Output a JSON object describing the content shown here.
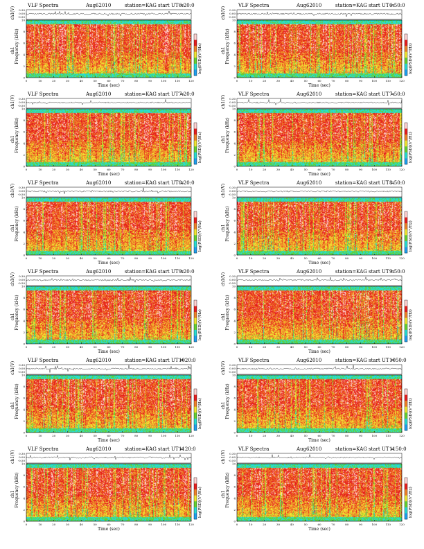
{
  "figure": {
    "label": "VLF Spectra",
    "date": "Aug62010",
    "station": "station=KAG",
    "start_label": "start UT =",
    "wave_ylabel": "ch1(V)",
    "wave_ticks": [
      "0.30",
      "0.00",
      "-0.50"
    ],
    "spec_ylabel": "Frequency (kHz)",
    "spec_ylabel_left": "ch1",
    "colorbar_label": "log(PSD)(V²/Hz)",
    "xlabel": "Time (sec)",
    "colors": {
      "background": "#ffffff",
      "low": "#1ea0f0",
      "cyan": "#28dcd2",
      "green": "#64d232",
      "yellow": "#f0e632",
      "orange": "#f08228",
      "red": "#e61e1e",
      "hot": "#ffd2d2"
    }
  },
  "chart_data": [
    {
      "type": "heatmap",
      "start_ut": "6:20:0",
      "x_ticks": [
        "0",
        "10",
        "20",
        "30",
        "40",
        "50",
        "60",
        "70",
        "80",
        "90",
        "100",
        "110",
        "120"
      ],
      "x_range": [
        0,
        120
      ],
      "y_ticks": [
        "0",
        "2",
        "4",
        "6",
        "8",
        "10"
      ],
      "y_range": [
        0,
        10
      ],
      "y_unit": "kHz"
    },
    {
      "type": "heatmap",
      "start_ut": "6:50:0",
      "x_ticks": [
        "0",
        "10",
        "20",
        "30",
        "40",
        "50",
        "60",
        "70",
        "80",
        "90",
        "100",
        "110",
        "120"
      ],
      "x_range": [
        0,
        120
      ],
      "y_ticks": [
        "0",
        "2",
        "4",
        "6",
        "8",
        "10"
      ],
      "y_range": [
        0,
        10
      ],
      "y_unit": "kHz"
    },
    {
      "type": "heatmap",
      "start_ut": "7:20:0",
      "x_ticks": [
        "0",
        "10",
        "20",
        "30",
        "40",
        "50",
        "60",
        "70",
        "80",
        "90",
        "100",
        "110",
        "120"
      ],
      "x_range": [
        0,
        120
      ],
      "y_ticks": [
        "0",
        "2",
        "4",
        "6",
        "8",
        "10"
      ],
      "y_range": [
        0,
        10
      ],
      "y_unit": "kHz"
    },
    {
      "type": "heatmap",
      "start_ut": "7:50:0",
      "x_ticks": [
        "0",
        "10",
        "20",
        "30",
        "40",
        "50",
        "60",
        "70",
        "80",
        "90",
        "100",
        "110",
        "120"
      ],
      "x_range": [
        0,
        120
      ],
      "y_ticks": [
        "0",
        "2",
        "4",
        "6",
        "8",
        "10"
      ],
      "y_range": [
        0,
        10
      ],
      "y_unit": "kHz"
    },
    {
      "type": "heatmap",
      "start_ut": "8:20:0",
      "x_ticks": [
        "0",
        "10",
        "20",
        "30",
        "40",
        "50",
        "60",
        "70",
        "80",
        "90",
        "100",
        "110",
        "120"
      ],
      "x_range": [
        0,
        120
      ],
      "y_ticks": [
        "0",
        "2",
        "4",
        "6",
        "8",
        "10"
      ],
      "y_range": [
        0,
        10
      ],
      "y_unit": "kHz"
    },
    {
      "type": "heatmap",
      "start_ut": "8:50:0",
      "x_ticks": [
        "0",
        "10",
        "20",
        "30",
        "40",
        "50",
        "60",
        "70",
        "80",
        "90",
        "100",
        "110",
        "120"
      ],
      "x_range": [
        0,
        120
      ],
      "y_ticks": [
        "0",
        "2",
        "4",
        "6",
        "8",
        "10"
      ],
      "y_range": [
        0,
        10
      ],
      "y_unit": "kHz"
    },
    {
      "type": "heatmap",
      "start_ut": "9:20:0",
      "x_ticks": [
        "0",
        "10",
        "20",
        "30",
        "40",
        "50",
        "60",
        "70",
        "80",
        "90",
        "100",
        "110",
        "120"
      ],
      "x_range": [
        0,
        120
      ],
      "y_ticks": [
        "0",
        "2",
        "4",
        "6",
        "8",
        "10"
      ],
      "y_range": [
        0,
        10
      ],
      "y_unit": "kHz"
    },
    {
      "type": "heatmap",
      "start_ut": "9:50:0",
      "x_ticks": [
        "0",
        "10",
        "20",
        "30",
        "40",
        "50",
        "60",
        "70",
        "80",
        "90",
        "100",
        "110",
        "120"
      ],
      "x_range": [
        0,
        120
      ],
      "y_ticks": [
        "0",
        "2",
        "4",
        "6",
        "8",
        "10"
      ],
      "y_range": [
        0,
        10
      ],
      "y_unit": "kHz"
    },
    {
      "type": "heatmap",
      "start_ut": "1020:0",
      "x_ticks": [
        "0",
        "10",
        "20",
        "30",
        "40",
        "50",
        "60",
        "70",
        "80",
        "90",
        "100",
        "110",
        "120"
      ],
      "x_range": [
        0,
        120
      ],
      "y_ticks": [
        "0",
        "2",
        "4",
        "6",
        "8",
        "10"
      ],
      "y_range": [
        0,
        10
      ],
      "y_unit": "kHz"
    },
    {
      "type": "heatmap",
      "start_ut": "1050:0",
      "x_ticks": [
        "0",
        "10",
        "20",
        "30",
        "40",
        "50",
        "60",
        "70",
        "80",
        "90",
        "100",
        "110",
        "120"
      ],
      "x_range": [
        0,
        120
      ],
      "y_ticks": [
        "0",
        "2",
        "4",
        "6",
        "8",
        "10"
      ],
      "y_range": [
        0,
        10
      ],
      "y_unit": "kHz"
    },
    {
      "type": "heatmap",
      "start_ut": "1120:0",
      "x_ticks": [
        "0",
        "10",
        "20",
        "30",
        "40",
        "50",
        "60",
        "70",
        "80",
        "90",
        "100",
        "110",
        "120"
      ],
      "x_range": [
        0,
        120
      ],
      "y_ticks": [
        "0",
        "2",
        "4",
        "6",
        "8",
        "10"
      ],
      "y_range": [
        0,
        10
      ],
      "y_unit": "kHz"
    },
    {
      "type": "heatmap",
      "start_ut": "1150:0",
      "x_ticks": [
        "0",
        "10",
        "20",
        "30",
        "40",
        "50",
        "60",
        "70",
        "80",
        "90",
        "100",
        "110",
        "120"
      ],
      "x_range": [
        0,
        120
      ],
      "y_ticks": [
        "0",
        "2",
        "4",
        "6",
        "8",
        "10"
      ],
      "y_range": [
        0,
        10
      ],
      "y_unit": "kHz"
    }
  ]
}
